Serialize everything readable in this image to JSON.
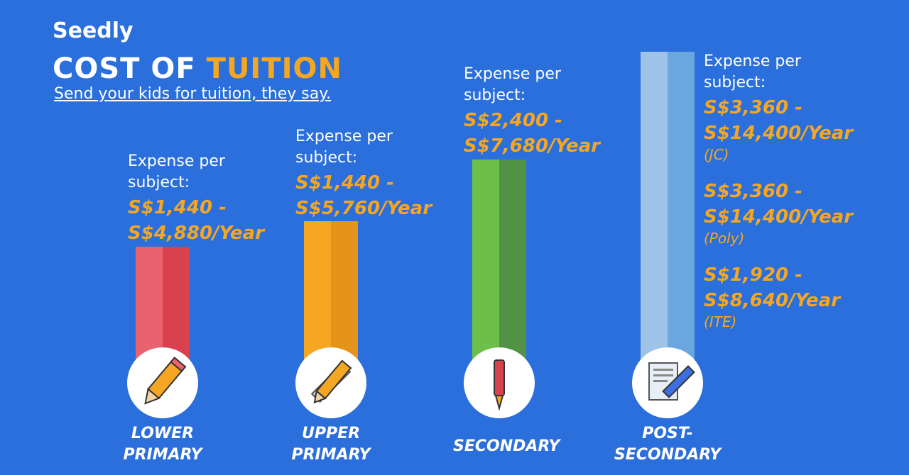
{
  "brand": "Seedly",
  "title": {
    "first": "COST OF",
    "highlight": "TUITION"
  },
  "subtitle": "Send your kids for tuition, they say.",
  "levels": [
    {
      "name": "LOWER PRIMARY",
      "caption": "Expense per subject:",
      "ranges": [
        {
          "range": "S$1,440 - S$4,880/Year"
        }
      ]
    },
    {
      "name": "UPPER PRIMARY",
      "caption": "Expense per subject:",
      "ranges": [
        {
          "range": "S$1,440 - S$5,760/Year"
        }
      ]
    },
    {
      "name": "SECONDARY",
      "caption": "Expense per subject:",
      "ranges": [
        {
          "range": "S$2,400 - S$7,680/Year"
        }
      ]
    },
    {
      "name": "POST-SECONDARY",
      "caption": "Expense per subject:",
      "ranges": [
        {
          "range": "S$3,360 - S$14,400/Year",
          "note": "(JC)"
        },
        {
          "range": "S$3,360 - S$14,400/Year",
          "note": "(Poly)"
        },
        {
          "range": "S$1,920 - S$8,640/Year",
          "note": "(ITE)"
        }
      ]
    }
  ]
}
